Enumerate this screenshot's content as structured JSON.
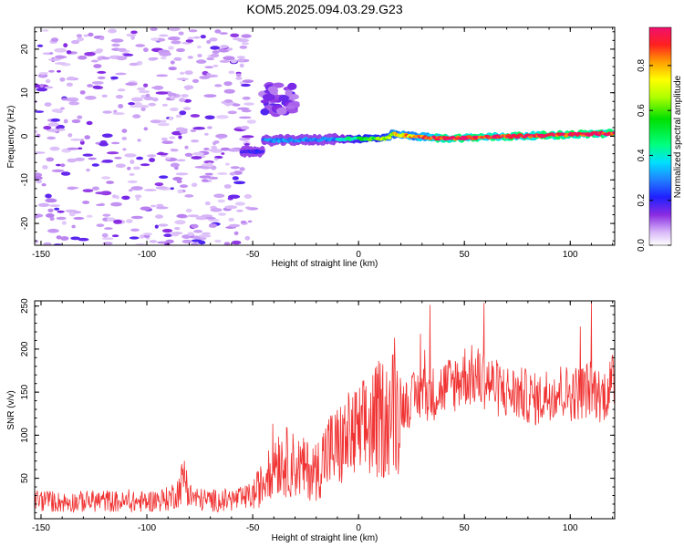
{
  "chart_data": [
    {
      "type": "heatmap",
      "title": "KOM5.2025.094.03.29.G23",
      "xlabel": "Height of straight line (km)",
      "ylabel": "Frequency (Hz)",
      "xlim": [
        -153,
        121
      ],
      "ylim": [
        -25,
        25
      ],
      "xticks": [
        "-150",
        "-100",
        "-50",
        "0",
        "50",
        "100"
      ],
      "yticks": [
        "-20",
        "-10",
        "0",
        "10",
        "20"
      ],
      "colorbar": {
        "label": "Normalized spectral amplitude",
        "range": [
          0,
          0.97
        ],
        "ticks": [
          "0.0",
          "0.2",
          "0.4",
          "0.6",
          "0.8"
        ]
      },
      "features": {
        "scattered_noise_region_x": [
          -153,
          -50
        ],
        "cluster_x": [
          -45,
          -30
        ],
        "cluster_frequency": [
          5,
          12
        ],
        "band_x": [
          -55,
          121
        ],
        "band_frequency": [
          -5,
          2
        ],
        "band_peak_amplitude": 0.95
      }
    },
    {
      "type": "line",
      "xlabel": "Height of straight line (km)",
      "ylabel": "SNR (v/v)",
      "xlim": [
        -153,
        121
      ],
      "ylim": [
        3,
        256
      ],
      "xticks": [
        "-150",
        "-100",
        "-50",
        "0",
        "50",
        "100"
      ],
      "yticks": [
        "50",
        "100",
        "150",
        "200",
        "250"
      ],
      "color": "#f03232",
      "x": [
        -153,
        -140,
        -130,
        -120,
        -110,
        -100,
        -90,
        -85,
        -82,
        -80,
        -75,
        -65,
        -55,
        -50,
        -45,
        -40,
        -35,
        -30,
        -25,
        -20,
        -15,
        -10,
        -5,
        0,
        5,
        10,
        15,
        20,
        25,
        30,
        35,
        40,
        45,
        50,
        55,
        60,
        65,
        70,
        75,
        80,
        85,
        90,
        95,
        100,
        105,
        110,
        115,
        120
      ],
      "values": [
        25,
        22,
        23,
        24,
        22,
        23,
        26,
        35,
        55,
        30,
        25,
        24,
        26,
        30,
        45,
        75,
        70,
        65,
        60,
        58,
        80,
        85,
        95,
        100,
        110,
        118,
        125,
        135,
        140,
        150,
        148,
        155,
        160,
        170,
        168,
        165,
        155,
        150,
        148,
        145,
        140,
        150,
        152,
        148,
        150,
        155,
        145,
        160
      ]
    }
  ]
}
